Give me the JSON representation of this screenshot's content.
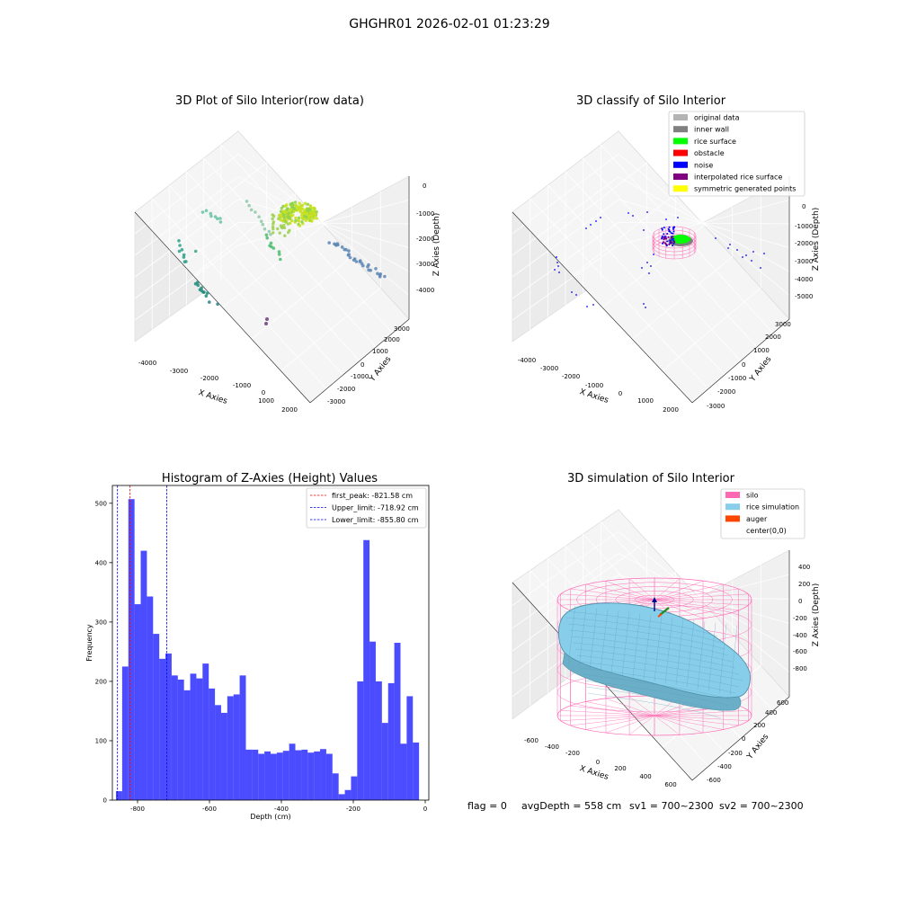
{
  "figure": {
    "suptitle": "GHGHR01 2026-02-01 01:23:29",
    "footer": {
      "flag": "flag = 0",
      "avg_depth": "avgDepth = 558 cm",
      "sv1": "sv1 = 700~2300",
      "sv2": "sv2 = 700~2300"
    }
  },
  "panels": {
    "raw": {
      "title": "3D Plot of Silo Interior(row data)",
      "xlabel": "X Axies",
      "ylabel": "Y Axies",
      "zlabel": "Z Axies (Depth)",
      "xticks": [
        "-4000",
        "-3000",
        "-2000",
        "-1000",
        "0",
        "1000",
        "2000"
      ],
      "yticks": [
        "-3000",
        "-2000",
        "-1000",
        "0",
        "1000",
        "2000",
        "3000"
      ],
      "zticks": [
        "0",
        "-1000",
        "-2000",
        "-3000",
        "-4000"
      ]
    },
    "classify": {
      "title": "3D classify of Silo Interior",
      "xlabel": "X Axies",
      "ylabel": "Y Axies",
      "zlabel": "Z Axies (Depth)",
      "xticks": [
        "-4000",
        "-3000",
        "-2000",
        "-1000",
        "0",
        "1000",
        "2000"
      ],
      "yticks": [
        "-3000",
        "-2000",
        "-1000",
        "0",
        "1000",
        "2000",
        "3000"
      ],
      "zticks": [
        "0",
        "-1000",
        "-2000",
        "-3000",
        "-4000",
        "-5000"
      ],
      "legend": [
        {
          "label": "original data",
          "color": "#b3b3b3"
        },
        {
          "label": "inner wall",
          "color": "#808080"
        },
        {
          "label": "rice surface",
          "color": "#00ff00"
        },
        {
          "label": "obstacle",
          "color": "#ff0000"
        },
        {
          "label": "noise",
          "color": "#0000ff"
        },
        {
          "label": "interpolated rice surface",
          "color": "#800080"
        },
        {
          "label": "symmetric generated points",
          "color": "#ffff00"
        }
      ]
    },
    "simulation": {
      "title": "3D simulation of Silo Interior",
      "xlabel": "X Axies",
      "ylabel": "Y Axies",
      "zlabel": "Z Axies (Depth)",
      "xticks": [
        "-600",
        "-400",
        "-200",
        "0",
        "200",
        "400",
        "600"
      ],
      "yticks": [
        "-600",
        "-400",
        "-200",
        "0",
        "200",
        "400",
        "600"
      ],
      "zticks": [
        "400",
        "200",
        "0",
        "-200",
        "-400",
        "-600",
        "-800"
      ],
      "legend": [
        {
          "label": "silo",
          "color": "#ff69b4"
        },
        {
          "label": "rice simulation",
          "color": "#87ceeb"
        },
        {
          "label": "auger",
          "color": "#ff4500"
        },
        {
          "label": "center(0,0)",
          "color": ""
        }
      ]
    }
  },
  "chart_data": {
    "type": "bar",
    "title": "Histogram of Z-Axies (Height) Values",
    "xlabel": "Depth (cm)",
    "ylabel": "Frequency",
    "xlim": [
      -870,
      10
    ],
    "ylim": [
      0,
      530
    ],
    "xticks": [
      -800,
      -600,
      -400,
      -200,
      0
    ],
    "yticks": [
      0,
      100,
      200,
      300,
      400,
      500
    ],
    "bin_start": -860,
    "bin_width": 17.2,
    "values": [
      15,
      225,
      507,
      330,
      420,
      343,
      280,
      238,
      247,
      210,
      203,
      185,
      213,
      205,
      230,
      188,
      160,
      147,
      175,
      178,
      210,
      85,
      85,
      78,
      82,
      78,
      80,
      83,
      95,
      84,
      85,
      80,
      82,
      86,
      78,
      45,
      10,
      17,
      40,
      200,
      438,
      267,
      200,
      130,
      197,
      265,
      95,
      175,
      97
    ],
    "bar_color": "#0000ff",
    "legend_position": "upper right",
    "reference_lines": [
      {
        "label": "first_peak: -821.58 cm",
        "x": -821.58,
        "color": "#ff0000"
      },
      {
        "label": "Upper_limit: -718.92 cm",
        "x": -718.92,
        "color": "#0000ff"
      },
      {
        "label": "Lower_limit: -855.80 cm",
        "x": -855.8,
        "color": "#0000ff"
      }
    ]
  }
}
